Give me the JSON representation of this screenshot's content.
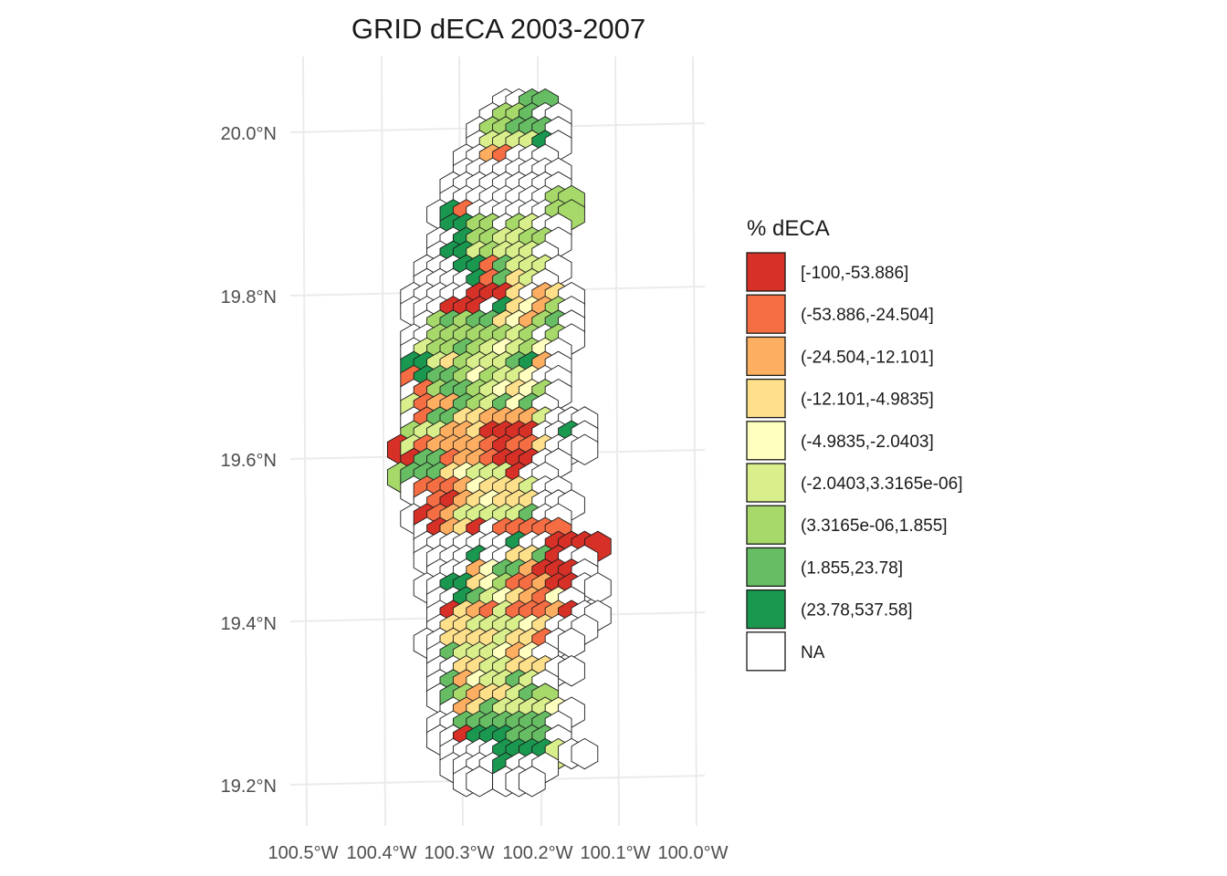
{
  "chart_data": {
    "type": "heatmap",
    "title": "GRID dECA 2003-2007",
    "xlabel": "",
    "ylabel": "",
    "y_ticks": [
      "20.0°N",
      "19.8°N",
      "19.6°N",
      "19.4°N",
      "19.2°N"
    ],
    "x_ticks": [
      "100.5°W",
      "100.4°W",
      "100.3°W",
      "100.2°W",
      "100.1°W",
      "100.0°W"
    ],
    "grid": true,
    "legend_position": "right",
    "legend_title": "% dECA",
    "legend": [
      {
        "label": "[-100,-53.886]",
        "color": "#d73027"
      },
      {
        "label": "(-53.886,-24.504]",
        "color": "#f46d43"
      },
      {
        "label": "(-24.504,-12.101]",
        "color": "#fdae61"
      },
      {
        "label": "(-12.101,-4.9835]",
        "color": "#fee08b"
      },
      {
        "label": "(-4.9835,-2.0403]",
        "color": "#ffffbf"
      },
      {
        "label": "(-2.0403,3.3165e-06]",
        "color": "#d9ef8b"
      },
      {
        "label": "(3.3165e-06,1.855]",
        "color": "#a6d96a"
      },
      {
        "label": "(1.855,23.78]",
        "color": "#66bd63"
      },
      {
        "label": "(23.78,537.58]",
        "color": "#1a9850"
      },
      {
        "label": "NA",
        "color": "#ffffff"
      }
    ],
    "hex_rows": [
      "               NN77",
      "              N667NN",
      "             N66777N",
      "             N55558N",
      "            NN21NNN",
      "            NNNNNNNN",
      "           NNNNNNNNN",
      "           NNNNNNNN66",
      "          N81NNNNNN66",
      "           8866N65NN",
      "          NN8665566N",
      "          N8856555N",
      "         NNN8817555N",
      "         NNNN81735N",
      "        NNNNN0003N23N",
      "        NNN000N83426N",
      "         N6767734267N",
      "        NN66666656N6N",
      "        N5667654564N",
      "        88536555782N",
      "        1877646554NN",
      "        N1677654346N",
      "        5122765747N",
      "        N1773322225NNN",
      "        6552230000NN8N",
      "       051222210113NNN",
      "        0771221000NN",
      "       6777345550NN",
      "        N111243335NN",
      "         N10234333NNN",
      "        N012555557NN",
      "         N0230N11111",
      "         NNNNNNN8NN0000",
      "         NNNN8NN3370NN",
      "          NNN24772000N",
      "         NN8834611200NN",
      "          NN87543214N",
      "          N0321511120NN",
      "          N33555543NNN",
      "         NN33335331NN",
      "          N7555424N",
      "          NN3355333NN",
      "          N7245575N",
      "          N76233576",
      "           N23755554N",
      "          NN7777777N",
      "          NN0888777N",
      "           NNNN88885NN",
      "           NNNN8NNN",
      "            NN NNN"
    ],
    "hex_codes_note": ""
  }
}
